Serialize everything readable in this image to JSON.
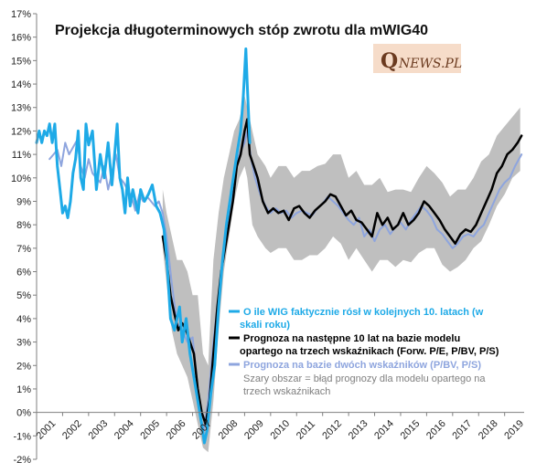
{
  "chart_data": {
    "type": "line",
    "title": "Projekcja długoterminowych stóp zwrotu dla mWIG40",
    "logo": {
      "text": "QNEWS.PL",
      "bg_color": "#f6dcc9",
      "text_color": "#6b3a1f"
    },
    "xlabel": "",
    "ylabel": "",
    "x_unit": "year",
    "xlim": [
      2001,
      2019.75
    ],
    "ylim": [
      -2,
      17
    ],
    "y_ticks": [
      "17%",
      "16%",
      "15%",
      "14%",
      "13%",
      "12%",
      "11%",
      "10%",
      "9%",
      "8%",
      "7%",
      "6%",
      "5%",
      "4%",
      "3%",
      "2%",
      "1%",
      "0%",
      "-1%",
      "-2%"
    ],
    "y_tick_values": [
      17,
      16,
      15,
      14,
      13,
      12,
      11,
      10,
      9,
      8,
      7,
      6,
      5,
      4,
      3,
      2,
      1,
      0,
      -1,
      -2
    ],
    "x_ticks": [
      "2001",
      "2002",
      "2003",
      "2004",
      "2005",
      "2006",
      "2007",
      "2008",
      "2009",
      "2010",
      "2011",
      "2012",
      "2013",
      "2014",
      "2015",
      "2016",
      "2017",
      "2018",
      "2019"
    ],
    "x_tick_values": [
      2001,
      2002,
      2003,
      2004,
      2005,
      2006,
      2007,
      2008,
      2009,
      2010,
      2011,
      2012,
      2013,
      2014,
      2015,
      2016,
      2017,
      2018,
      2019
    ],
    "grid": false,
    "legend_position": "bottom-right",
    "band": {
      "name": "Szary obszar = błąd prognozy dla modelu opartego na trzech wskaźnikach",
      "color": "#bfbfbf",
      "x": [
        2005.85,
        2006.0,
        2006.2,
        2006.4,
        2006.6,
        2006.8,
        2007.0,
        2007.2,
        2007.4,
        2007.6,
        2007.8,
        2008.0,
        2008.2,
        2008.4,
        2008.6,
        2008.8,
        2009.0,
        2009.1,
        2009.3,
        2009.5,
        2009.8,
        2010.0,
        2010.3,
        2010.6,
        2010.9,
        2011.2,
        2011.5,
        2011.8,
        2012.1,
        2012.4,
        2012.7,
        2013.0,
        2013.3,
        2013.6,
        2013.9,
        2014.2,
        2014.5,
        2014.8,
        2015.1,
        2015.4,
        2015.7,
        2016.0,
        2016.3,
        2016.6,
        2016.9,
        2017.2,
        2017.5,
        2017.8,
        2018.1,
        2018.4,
        2018.7,
        2019.0,
        2019.3,
        2019.6
      ],
      "upper": [
        9.5,
        8.5,
        7.5,
        6.5,
        6.5,
        6.0,
        5.0,
        5.0,
        2.5,
        2.0,
        6.5,
        8.5,
        10.0,
        11.0,
        12.0,
        12.5,
        13.5,
        13.0,
        12.0,
        11.0,
        10.5,
        10.0,
        10.5,
        10.5,
        10.0,
        10.3,
        10.3,
        10.5,
        10.6,
        11.0,
        11.0,
        10.0,
        10.3,
        9.7,
        9.7,
        10.0,
        9.4,
        9.5,
        9.5,
        9.4,
        10.0,
        10.5,
        10.2,
        9.8,
        9.2,
        9.5,
        9.5,
        10.0,
        10.7,
        11.0,
        11.8,
        12.2,
        12.6,
        13.0
      ],
      "lower": [
        7.0,
        5.5,
        3.5,
        2.5,
        2.0,
        1.5,
        0.5,
        -0.5,
        -1.5,
        -1.7,
        0.5,
        3.5,
        6.0,
        7.5,
        9.0,
        10.0,
        10.5,
        10.0,
        8.0,
        7.5,
        7.0,
        6.8,
        7.0,
        7.0,
        6.5,
        6.5,
        6.7,
        6.7,
        7.0,
        7.5,
        7.2,
        6.5,
        7.0,
        6.5,
        6.0,
        6.5,
        6.5,
        6.2,
        6.5,
        6.4,
        6.8,
        7.0,
        7.0,
        6.3,
        6.0,
        6.2,
        6.5,
        7.0,
        7.3,
        8.0,
        8.8,
        9.3,
        10.0,
        10.3
      ]
    },
    "series": [
      {
        "name": "O ile WIG faktycznie rósł w kolejnych 10. latach (w skali roku)",
        "color": "#1eaae7",
        "width": 3,
        "x": [
          2001.0,
          2001.1,
          2001.2,
          2001.3,
          2001.4,
          2001.5,
          2001.6,
          2001.7,
          2001.8,
          2001.9,
          2002.0,
          2002.1,
          2002.2,
          2002.3,
          2002.4,
          2002.5,
          2002.6,
          2002.7,
          2002.8,
          2002.9,
          2003.0,
          2003.15,
          2003.3,
          2003.45,
          2003.6,
          2003.75,
          2003.9,
          2004.0,
          2004.1,
          2004.2,
          2004.3,
          2004.4,
          2004.5,
          2004.6,
          2004.7,
          2004.8,
          2004.9,
          2005.0,
          2005.15,
          2005.3,
          2005.45,
          2005.6,
          2005.75,
          2005.9,
          2006.0,
          2006.15,
          2006.3,
          2006.5,
          2006.6,
          2006.75,
          2006.9,
          2007.05,
          2007.2,
          2007.35,
          2007.45,
          2007.55,
          2007.7,
          2007.85,
          2008.0,
          2008.15,
          2008.3,
          2008.5,
          2008.7,
          2008.85,
          2008.95,
          2009.05,
          2009.1,
          2009.2
        ],
        "values": [
          11.5,
          12.0,
          11.5,
          12.0,
          11.8,
          12.3,
          11.5,
          12.3,
          10.5,
          9.5,
          8.5,
          8.8,
          8.3,
          9.0,
          10.2,
          10.8,
          12.0,
          10.0,
          9.5,
          12.3,
          11.4,
          12.0,
          9.5,
          11.0,
          10.0,
          11.5,
          9.7,
          11.0,
          12.3,
          10.0,
          9.5,
          8.5,
          10.0,
          8.8,
          9.5,
          9.0,
          8.5,
          9.5,
          9.0,
          9.3,
          9.7,
          8.8,
          8.5,
          7.8,
          6.7,
          4.0,
          3.5,
          4.5,
          3.0,
          4.0,
          2.5,
          1.5,
          0.5,
          -0.5,
          -1.3,
          -0.8,
          0.8,
          2.0,
          4.5,
          6.5,
          8.0,
          9.5,
          11.0,
          12.0,
          13.5,
          15.5,
          14.0,
          11.5
        ]
      },
      {
        "name": "Prognoza na następne 10 lat na bazie modelu opartego na trzech wskaźnikach (Forw. P/E, P/BV, P/S)",
        "color": "#000000",
        "width": 2.5,
        "x": [
          2005.85,
          2006.0,
          2006.15,
          2006.3,
          2006.45,
          2006.6,
          2006.75,
          2006.9,
          2007.05,
          2007.2,
          2007.35,
          2007.5,
          2007.65,
          2007.8,
          2007.95,
          2008.1,
          2008.25,
          2008.4,
          2008.55,
          2008.7,
          2008.85,
          2009.0,
          2009.1,
          2009.2,
          2009.35,
          2009.5,
          2009.7,
          2009.9,
          2010.1,
          2010.3,
          2010.5,
          2010.7,
          2010.9,
          2011.1,
          2011.3,
          2011.5,
          2011.7,
          2011.9,
          2012.1,
          2012.3,
          2012.5,
          2012.7,
          2012.9,
          2013.1,
          2013.3,
          2013.5,
          2013.7,
          2013.9,
          2014.1,
          2014.3,
          2014.5,
          2014.7,
          2014.9,
          2015.1,
          2015.3,
          2015.5,
          2015.7,
          2015.9,
          2016.1,
          2016.3,
          2016.5,
          2016.7,
          2016.9,
          2017.1,
          2017.3,
          2017.5,
          2017.7,
          2017.9,
          2018.1,
          2018.3,
          2018.5,
          2018.7,
          2018.9,
          2019.1,
          2019.3,
          2019.5,
          2019.65
        ],
        "values": [
          7.5,
          6.5,
          5.0,
          4.2,
          3.5,
          3.8,
          3.5,
          3.0,
          2.5,
          1.0,
          0.0,
          -0.5,
          0.5,
          2.5,
          4.5,
          6.0,
          7.0,
          8.0,
          9.0,
          10.5,
          11.0,
          12.0,
          12.5,
          11.0,
          10.5,
          10.0,
          9.0,
          8.5,
          8.7,
          8.5,
          8.6,
          8.2,
          8.7,
          8.8,
          8.5,
          8.3,
          8.6,
          8.8,
          9.0,
          9.3,
          9.2,
          8.8,
          8.4,
          8.6,
          8.2,
          8.1,
          7.8,
          7.5,
          8.5,
          8.0,
          8.3,
          7.8,
          8.0,
          8.5,
          8.0,
          8.2,
          8.5,
          9.0,
          8.8,
          8.5,
          8.2,
          7.8,
          7.5,
          7.2,
          7.6,
          7.8,
          7.7,
          8.0,
          8.5,
          9.0,
          9.5,
          10.2,
          10.5,
          11.0,
          11.2,
          11.5,
          11.8
        ]
      },
      {
        "name": "Prognoza na bazie dwóch wskaźników (P/BV, P/S)",
        "color": "#8ea5de",
        "width": 2,
        "x": [
          2001.5,
          2001.65,
          2001.8,
          2001.95,
          2002.1,
          2002.25,
          2002.4,
          2002.55,
          2002.7,
          2002.85,
          2003.0,
          2003.15,
          2003.3,
          2003.45,
          2003.6,
          2003.75,
          2003.9,
          2004.05,
          2004.2,
          2004.35,
          2004.5,
          2004.65,
          2004.8,
          2004.95,
          2005.1,
          2005.25,
          2005.4,
          2005.55,
          2005.7,
          2005.85,
          2006.0,
          2006.2,
          2006.4,
          2006.6,
          2006.8,
          2007.0,
          2007.2,
          2007.4,
          2007.6,
          2007.8,
          2008.0,
          2008.2,
          2008.4,
          2008.6,
          2008.8,
          2009.0,
          2009.1,
          2009.25,
          2009.4,
          2009.6,
          2009.8,
          2010.0,
          2010.2,
          2010.4,
          2010.6,
          2010.8,
          2011.0,
          2011.2,
          2011.4,
          2011.6,
          2011.8,
          2012.0,
          2012.2,
          2012.4,
          2012.6,
          2012.8,
          2013.0,
          2013.2,
          2013.4,
          2013.6,
          2013.8,
          2014.0,
          2014.2,
          2014.4,
          2014.6,
          2014.8,
          2015.0,
          2015.2,
          2015.4,
          2015.6,
          2015.8,
          2016.0,
          2016.2,
          2016.4,
          2016.6,
          2016.8,
          2017.0,
          2017.2,
          2017.4,
          2017.6,
          2017.8,
          2018.0,
          2018.2,
          2018.4,
          2018.6,
          2018.8,
          2019.0,
          2019.2,
          2019.4,
          2019.65
        ],
        "values": [
          10.8,
          11.0,
          11.2,
          10.5,
          11.5,
          11.0,
          11.3,
          11.6,
          10.5,
          10.0,
          10.8,
          10.2,
          10.0,
          9.8,
          10.5,
          9.5,
          10.2,
          11.0,
          10.0,
          9.8,
          9.5,
          9.2,
          8.6,
          9.3,
          9.0,
          9.2,
          9.0,
          8.8,
          9.0,
          8.5,
          7.5,
          5.5,
          3.8,
          3.5,
          3.0,
          3.2,
          1.0,
          -1.0,
          0.5,
          3.0,
          5.0,
          7.0,
          8.5,
          10.0,
          11.0,
          11.5,
          12.0,
          10.8,
          10.0,
          9.3,
          8.8,
          8.5,
          8.7,
          8.5,
          8.6,
          8.3,
          8.5,
          8.6,
          8.5,
          8.4,
          8.7,
          8.9,
          9.2,
          9.0,
          8.8,
          8.5,
          8.2,
          8.0,
          8.3,
          7.5,
          7.8,
          7.3,
          7.8,
          8.0,
          7.6,
          7.9,
          8.1,
          7.8,
          8.2,
          8.5,
          8.8,
          8.6,
          8.3,
          7.8,
          7.6,
          7.3,
          7.0,
          7.2,
          7.5,
          7.6,
          7.5,
          7.8,
          8.0,
          8.5,
          9.0,
          9.5,
          9.8,
          10.0,
          10.5,
          11.0
        ]
      }
    ],
    "band_legend_text": "Szary obszar = błąd prognozy dla modelu opartego na trzech wskaźnikach",
    "legend": [
      {
        "series_index": 0,
        "lines": [
          "O ile WIG faktycznie  rósł w kolejnych  10. latach (w",
          "skali  roku)"
        ],
        "color": "#1eaae7"
      },
      {
        "series_index": 1,
        "lines": [
          "Prognoza  na następne 10 lat na bazie modelu",
          "opartego na trzech wskaźnikach  (Forw. P/E, P/BV, P/S)"
        ],
        "color": "#000000"
      },
      {
        "series_index": 2,
        "lines": [
          "Prognoza  na bazie dwóch wskaźników  (P/BV, P/S)"
        ],
        "color": "#8ea5de"
      }
    ],
    "band_legend_lines": [
      "Szary obszar  = błąd  prognozy dla modelu opartego na",
      "trzech wskaźnikach"
    ]
  }
}
